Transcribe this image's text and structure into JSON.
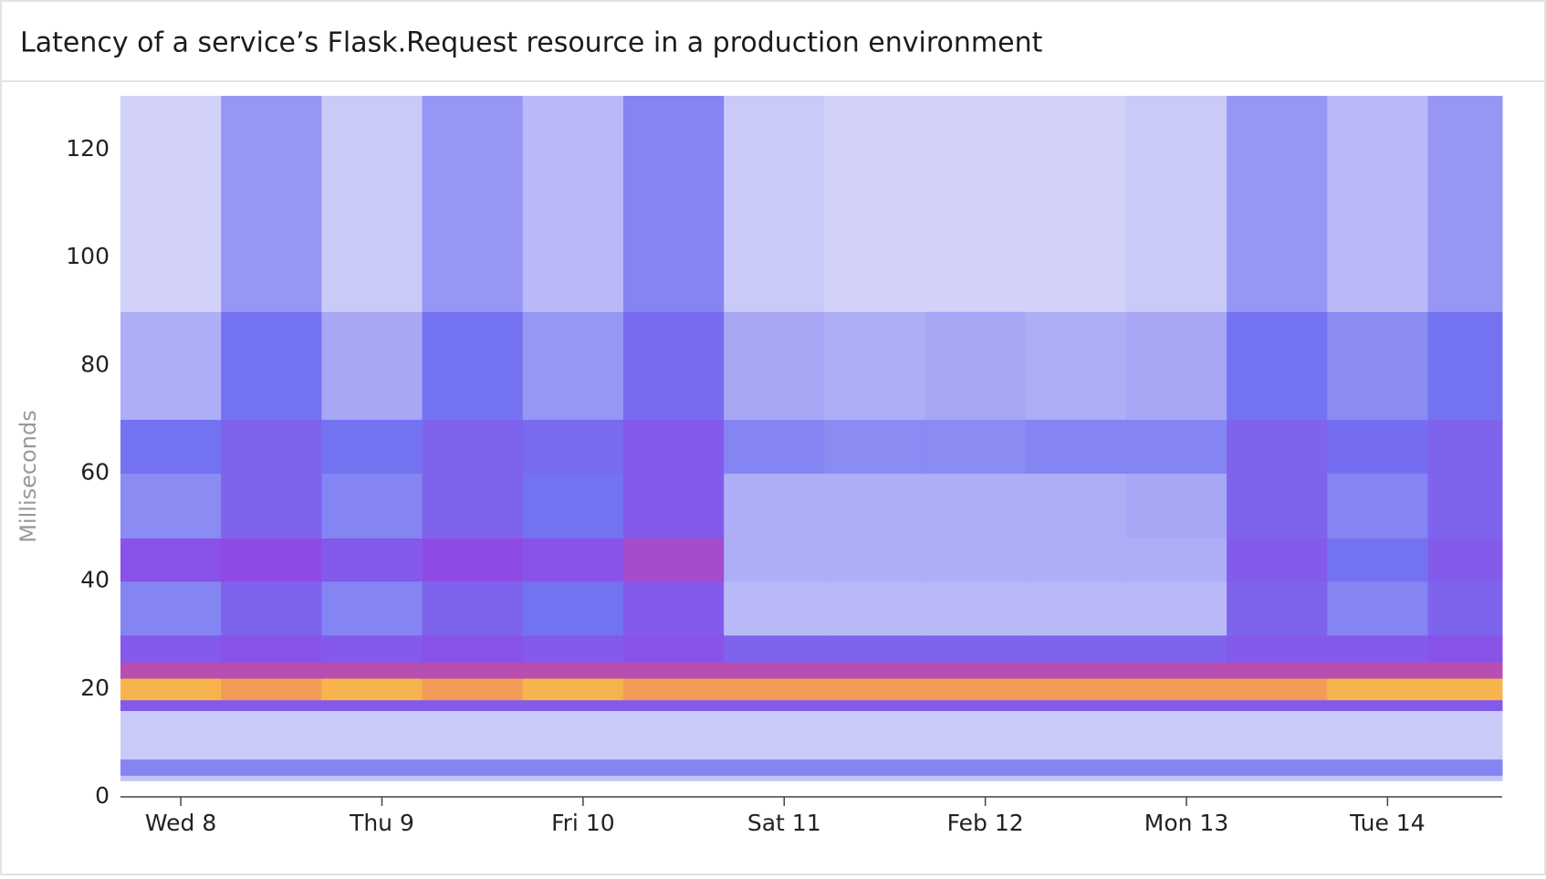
{
  "chart_data": {
    "type": "heatmap",
    "title": "Latency of a service’s Flask.Request resource in a production environment",
    "y_label": "Milliseconds",
    "xlim": [
      7.7,
      14.57
    ],
    "xticks": [
      {
        "value": 8,
        "label": "Wed 8"
      },
      {
        "value": 9,
        "label": "Thu 9"
      },
      {
        "value": 10,
        "label": "Fri 10"
      },
      {
        "value": 11,
        "label": "Sat 11"
      },
      {
        "value": 12,
        "label": "Feb 12"
      },
      {
        "value": 13,
        "label": "Mon 13"
      },
      {
        "value": 14,
        "label": "Tue 14"
      }
    ],
    "ylim": [
      0,
      130
    ],
    "yticks": [
      0,
      20,
      40,
      60,
      80,
      100,
      120
    ],
    "x_bins": [
      7.7,
      8.2,
      8.7,
      9.2,
      9.7,
      10.2,
      10.7,
      11.2,
      11.7,
      12.2,
      12.7,
      13.2,
      13.7,
      14.2,
      14.57
    ],
    "y_bins": [
      3,
      4,
      7,
      16,
      18,
      22,
      25,
      30,
      40,
      48,
      60,
      70,
      90,
      130
    ],
    "values": [
      [
        12,
        12,
        12,
        12,
        12,
        12,
        12,
        12,
        12,
        12,
        12,
        12,
        12,
        12
      ],
      [
        30,
        30,
        30,
        30,
        30,
        30,
        30,
        30,
        30,
        30,
        30,
        30,
        30,
        30
      ],
      [
        10,
        10,
        10,
        10,
        10,
        10,
        10,
        10,
        10,
        10,
        10,
        10,
        10,
        10
      ],
      [
        50,
        50,
        50,
        50,
        50,
        50,
        50,
        50,
        50,
        50,
        50,
        50,
        50,
        50
      ],
      [
        100,
        95,
        100,
        95,
        100,
        95,
        95,
        95,
        95,
        95,
        95,
        95,
        100,
        100
      ],
      [
        70,
        70,
        70,
        70,
        70,
        70,
        70,
        70,
        70,
        70,
        70,
        70,
        70,
        70
      ],
      [
        50,
        55,
        50,
        55,
        50,
        55,
        45,
        45,
        45,
        45,
        45,
        50,
        50,
        55
      ],
      [
        30,
        45,
        30,
        45,
        35,
        50,
        15,
        15,
        15,
        15,
        15,
        45,
        30,
        45
      ],
      [
        55,
        60,
        50,
        60,
        55,
        65,
        18,
        18,
        18,
        18,
        18,
        50,
        35,
        50
      ],
      [
        28,
        45,
        30,
        45,
        35,
        50,
        18,
        18,
        18,
        18,
        20,
        45,
        30,
        45
      ],
      [
        35,
        45,
        35,
        45,
        40,
        50,
        30,
        28,
        28,
        30,
        30,
        45,
        38,
        45
      ],
      [
        18,
        35,
        20,
        35,
        25,
        40,
        20,
        18,
        20,
        18,
        20,
        35,
        28,
        35
      ],
      [
        8,
        25,
        10,
        25,
        15,
        30,
        10,
        8,
        8,
        8,
        10,
        25,
        15,
        25
      ]
    ],
    "colorscale": [
      [
        0,
        "#ededfc"
      ],
      [
        35,
        "#7373f2"
      ],
      [
        60,
        "#8f4ae6"
      ],
      [
        80,
        "#e2527c"
      ],
      [
        100,
        "#f7b44c"
      ]
    ]
  }
}
